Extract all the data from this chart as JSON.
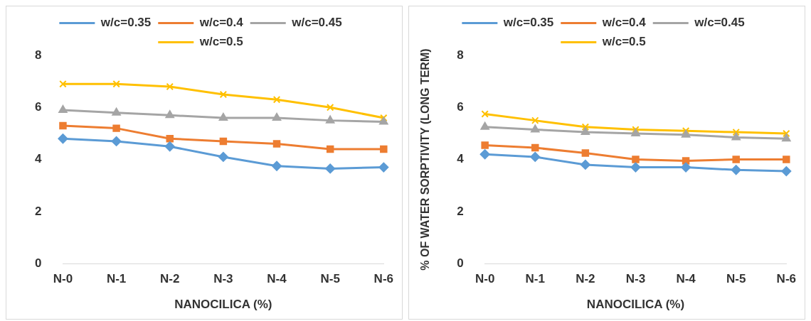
{
  "chart_data": [
    {
      "type": "line",
      "xlabel": "NANOCILICA (%)",
      "categories": [
        "N-0",
        "N-1",
        "N-2",
        "N-3",
        "N-4",
        "N-5",
        "N-6"
      ],
      "ylim": [
        0,
        8
      ],
      "yticks": [
        0,
        2,
        4,
        6,
        8
      ],
      "grid": false,
      "legend": "top",
      "series": [
        {
          "name": "w/c=0.35",
          "color": "#5b9bd5",
          "marker": "diamond",
          "values": [
            4.8,
            4.7,
            4.5,
            4.1,
            3.75,
            3.65,
            3.7
          ]
        },
        {
          "name": "w/c=0.4",
          "color": "#ed7d31",
          "marker": "square",
          "values": [
            5.3,
            5.2,
            4.8,
            4.7,
            4.6,
            4.4,
            4.4
          ]
        },
        {
          "name": "w/c=0.45",
          "color": "#a5a5a5",
          "marker": "triangle",
          "values": [
            5.9,
            5.8,
            5.7,
            5.6,
            5.6,
            5.5,
            5.45
          ]
        },
        {
          "name": "w/c=0.5",
          "color": "#ffc000",
          "marker": "cross",
          "values": [
            6.9,
            6.9,
            6.8,
            6.5,
            6.3,
            6.0,
            5.6
          ]
        }
      ]
    },
    {
      "type": "line",
      "xlabel": "NANOCILICA (%)",
      "ylabel": "% OF WATER SORPTIVITY (LONG TERM)",
      "categories": [
        "N-0",
        "N-1",
        "N-2",
        "N-3",
        "N-4",
        "N-5",
        "N-6"
      ],
      "ylim": [
        0,
        8
      ],
      "yticks": [
        0,
        2,
        4,
        6,
        8
      ],
      "grid": false,
      "legend": "top",
      "series": [
        {
          "name": "w/c=0.35",
          "color": "#5b9bd5",
          "marker": "diamond",
          "values": [
            4.2,
            4.1,
            3.8,
            3.7,
            3.7,
            3.6,
            3.55
          ]
        },
        {
          "name": "w/c=0.4",
          "color": "#ed7d31",
          "marker": "square",
          "values": [
            4.55,
            4.45,
            4.25,
            4.0,
            3.95,
            4.0,
            4.0
          ]
        },
        {
          "name": "w/c=0.45",
          "color": "#a5a5a5",
          "marker": "triangle",
          "values": [
            5.25,
            5.15,
            5.05,
            5.0,
            4.95,
            4.85,
            4.8
          ]
        },
        {
          "name": "w/c=0.5",
          "color": "#ffc000",
          "marker": "cross",
          "values": [
            5.75,
            5.5,
            5.25,
            5.15,
            5.1,
            5.05,
            5.0
          ]
        }
      ]
    }
  ]
}
